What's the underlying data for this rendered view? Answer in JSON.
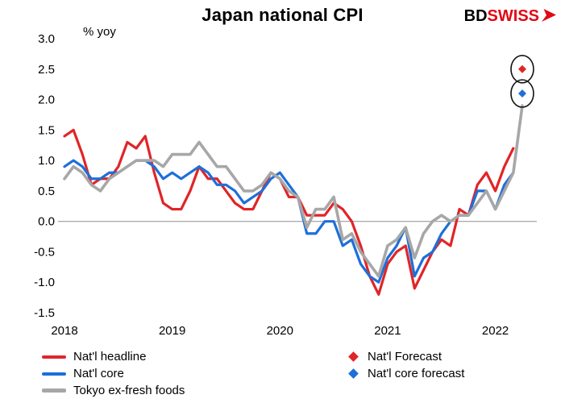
{
  "header": {
    "title": "Japan national CPI",
    "logo": {
      "bd": "BD",
      "swiss": "SWISS",
      "accent": "#e30613"
    }
  },
  "chart_data": {
    "type": "line",
    "title": "Japan national CPI",
    "ylabel": "% yoy",
    "xlabel": "",
    "ylim": [
      -1.5,
      3.0
    ],
    "y_ticks": [
      3.0,
      2.5,
      2.0,
      1.5,
      1.0,
      0.5,
      0.0,
      -0.5,
      -1.0,
      -1.5
    ],
    "x_ticks": [
      {
        "label": "2018",
        "index": 0
      },
      {
        "label": "2019",
        "index": 12
      },
      {
        "label": "2020",
        "index": 24
      },
      {
        "label": "2021",
        "index": 36
      },
      {
        "label": "2022",
        "index": 48
      }
    ],
    "x_start": "2018-01",
    "x_freq": "monthly",
    "grid": false,
    "zero_line": true,
    "legend_position": "bottom",
    "series": [
      {
        "name": "Nat'l headline",
        "color": "#e02528",
        "width": 3.2,
        "values": [
          1.4,
          1.5,
          1.1,
          0.6,
          0.7,
          0.7,
          0.9,
          1.3,
          1.2,
          1.4,
          0.8,
          0.3,
          0.2,
          0.2,
          0.5,
          0.9,
          0.7,
          0.7,
          0.5,
          0.3,
          0.2,
          0.2,
          0.5,
          0.8,
          0.7,
          0.4,
          0.4,
          0.1,
          0.1,
          0.1,
          0.3,
          0.2,
          0.0,
          -0.4,
          -0.9,
          -1.2,
          -0.7,
          -0.5,
          -0.4,
          -1.1,
          -0.8,
          -0.5,
          -0.3,
          -0.4,
          0.2,
          0.1,
          0.6,
          0.8,
          0.5,
          0.9,
          1.2
        ]
      },
      {
        "name": "Nat'l core",
        "color": "#1e6fd9",
        "width": 3.2,
        "values": [
          0.9,
          1.0,
          0.9,
          0.7,
          0.7,
          0.8,
          0.8,
          0.9,
          1.0,
          1.0,
          0.9,
          0.7,
          0.8,
          0.7,
          0.8,
          0.9,
          0.8,
          0.6,
          0.6,
          0.5,
          0.3,
          0.4,
          0.5,
          0.7,
          0.8,
          0.6,
          0.4,
          -0.2,
          -0.2,
          0.0,
          0.0,
          -0.4,
          -0.3,
          -0.7,
          -0.9,
          -1.0,
          -0.6,
          -0.4,
          -0.1,
          -0.9,
          -0.6,
          -0.5,
          -0.2,
          0.0,
          0.1,
          0.1,
          0.5,
          0.5,
          0.2,
          0.6,
          0.8
        ]
      },
      {
        "name": "Tokyo ex-fresh foods",
        "color": "#a7a7a7",
        "width": 3.6,
        "values": [
          0.7,
          0.9,
          0.8,
          0.6,
          0.5,
          0.7,
          0.8,
          0.9,
          1.0,
          1.0,
          1.0,
          0.9,
          1.1,
          1.1,
          1.1,
          1.3,
          1.1,
          0.9,
          0.9,
          0.7,
          0.5,
          0.5,
          0.6,
          0.8,
          0.7,
          0.5,
          0.4,
          -0.1,
          0.2,
          0.2,
          0.4,
          -0.3,
          -0.2,
          -0.5,
          -0.7,
          -0.9,
          -0.4,
          -0.3,
          -0.1,
          -0.6,
          -0.2,
          0.0,
          0.1,
          0.0,
          0.1,
          0.1,
          0.3,
          0.5,
          0.2,
          0.5,
          0.8,
          1.9
        ]
      }
    ],
    "forecasts": [
      {
        "name": "Nat'l Forecast",
        "color": "#e02528",
        "x_index": 51,
        "value": 2.5,
        "circled": true
      },
      {
        "name": "Nat'l core forecast",
        "color": "#1e6fd9",
        "x_index": 51,
        "value": 2.1,
        "circled": true
      }
    ]
  }
}
